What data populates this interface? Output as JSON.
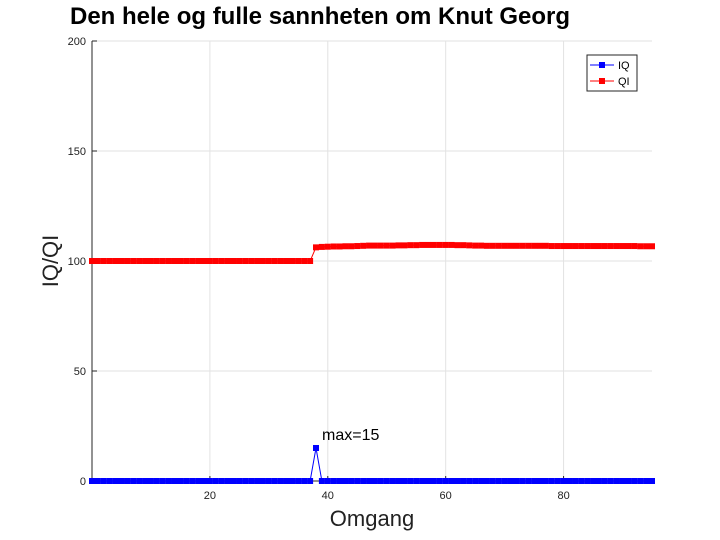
{
  "chart_data": {
    "type": "line",
    "title": "Den hele og fulle sannheten om Knut Georg",
    "xlabel": "Omgang",
    "ylabel": "IQ/QI",
    "xlim": [
      0,
      95
    ],
    "ylim": [
      0,
      200
    ],
    "xticks": [
      20,
      40,
      60,
      80
    ],
    "yticks": [
      0,
      50,
      100,
      150,
      200
    ],
    "grid": true,
    "legend_position": "top-right",
    "series": [
      {
        "name": "IQ",
        "color": "#0000ff",
        "marker": "square",
        "x": [
          0,
          1,
          2,
          3,
          4,
          5,
          6,
          7,
          8,
          9,
          10,
          11,
          12,
          13,
          14,
          15,
          16,
          17,
          18,
          19,
          20,
          21,
          22,
          23,
          24,
          25,
          26,
          27,
          28,
          29,
          30,
          31,
          32,
          33,
          34,
          35,
          36,
          37,
          38,
          39,
          40,
          41,
          42,
          43,
          44,
          45,
          46,
          47,
          48,
          49,
          50,
          51,
          52,
          53,
          54,
          55,
          56,
          57,
          58,
          59,
          60,
          61,
          62,
          63,
          64,
          65,
          66,
          67,
          68,
          69,
          70,
          71,
          72,
          73,
          74,
          75,
          76,
          77,
          78,
          79,
          80,
          81,
          82,
          83,
          84,
          85,
          86,
          87,
          88,
          89,
          90,
          91,
          92,
          93,
          94,
          95
        ],
        "y": [
          0,
          0,
          0,
          0,
          0,
          0,
          0,
          0,
          0,
          0,
          0,
          0,
          0,
          0,
          0,
          0,
          0,
          0,
          0,
          0,
          0,
          0,
          0,
          0,
          0,
          0,
          0,
          0,
          0,
          0,
          0,
          0,
          0,
          0,
          0,
          0,
          0,
          0,
          15,
          0,
          0,
          0,
          0,
          0,
          0,
          0,
          0,
          0,
          0,
          0,
          0,
          0,
          0,
          0,
          0,
          0,
          0,
          0,
          0,
          0,
          0,
          0,
          0,
          0,
          0,
          0,
          0,
          0,
          0,
          0,
          0,
          0,
          0,
          0,
          0,
          0,
          0,
          0,
          0,
          0,
          0,
          0,
          0,
          0,
          0,
          0,
          0,
          0,
          0,
          0,
          0,
          0,
          0,
          0,
          0,
          0
        ]
      },
      {
        "name": "QI",
        "color": "#ff0000",
        "marker": "square",
        "x": [
          0,
          1,
          2,
          3,
          4,
          5,
          6,
          7,
          8,
          9,
          10,
          11,
          12,
          13,
          14,
          15,
          16,
          17,
          18,
          19,
          20,
          21,
          22,
          23,
          24,
          25,
          26,
          27,
          28,
          29,
          30,
          31,
          32,
          33,
          34,
          35,
          36,
          37,
          38,
          39,
          40,
          41,
          42,
          43,
          44,
          45,
          46,
          47,
          48,
          49,
          50,
          51,
          52,
          53,
          54,
          55,
          56,
          57,
          58,
          59,
          60,
          61,
          62,
          63,
          64,
          65,
          66,
          67,
          68,
          69,
          70,
          71,
          72,
          73,
          74,
          75,
          76,
          77,
          78,
          79,
          80,
          81,
          82,
          83,
          84,
          85,
          86,
          87,
          88,
          89,
          90,
          91,
          92,
          93,
          94,
          95
        ],
        "y": [
          100,
          100,
          100,
          100,
          100,
          100,
          100,
          100,
          100,
          100,
          100,
          100,
          100,
          100,
          100,
          100,
          100,
          100,
          100,
          100,
          100,
          100,
          100,
          100,
          100,
          100,
          100,
          100,
          100,
          100,
          100,
          100,
          100,
          100,
          100,
          100,
          100,
          100,
          106.2,
          106.4,
          106.5,
          106.6,
          106.6,
          106.7,
          106.7,
          106.8,
          106.9,
          107,
          107,
          107,
          107,
          107,
          107.1,
          107.1,
          107.2,
          107.2,
          107.3,
          107.3,
          107.3,
          107.3,
          107.3,
          107.3,
          107.2,
          107.2,
          107.1,
          107,
          107,
          106.9,
          106.9,
          106.9,
          106.9,
          106.9,
          106.9,
          106.9,
          106.9,
          106.9,
          106.9,
          106.9,
          106.8,
          106.8,
          106.8,
          106.8,
          106.8,
          106.8,
          106.8,
          106.8,
          106.8,
          106.8,
          106.8,
          106.8,
          106.8,
          106.8,
          106.8,
          106.7,
          106.7,
          106.7
        ]
      }
    ],
    "annotations": [
      {
        "text": "max=15",
        "x": 38,
        "y": 15
      }
    ]
  }
}
